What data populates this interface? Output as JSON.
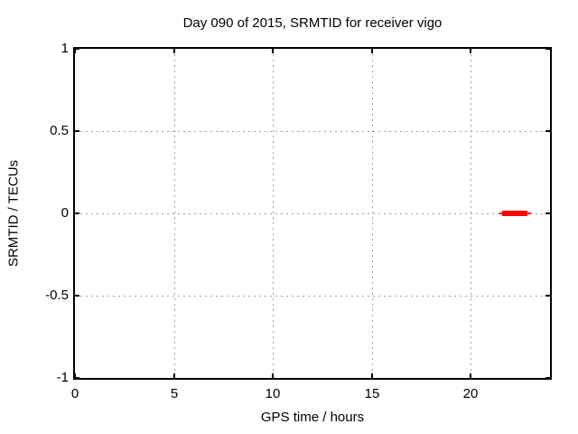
{
  "figure": {
    "background": "#ffffff"
  },
  "chart_data": {
    "type": "line",
    "title": "Day 090 of 2015, SRMTID for receiver vigo",
    "xlabel": "GPS time / hours",
    "ylabel": "SRMTID / TECUs",
    "xlim": [
      0,
      24
    ],
    "ylim": [
      -1,
      1
    ],
    "xticks": [
      0,
      5,
      10,
      15,
      20
    ],
    "yticks": [
      1,
      0.5,
      0,
      -0.5,
      -1
    ],
    "grid": true,
    "legend": "none",
    "colors": {
      "background": "#ffffff",
      "border": "#000000",
      "grid": "#9e9e9e",
      "series": "#ff0000",
      "text": "#000000"
    },
    "series": [
      {
        "name": "SRMTID",
        "color": "#ff0000",
        "style": "thick-horizontal-segment",
        "y": 0,
        "x_start": 21.45,
        "x_end": 23.05,
        "x_core_start": 21.6,
        "x_core_end": 22.9,
        "description": "SRMTID ~0 TECUs for GPS time ~21.5-23.0 h; no data elsewhere in plot"
      }
    ]
  }
}
